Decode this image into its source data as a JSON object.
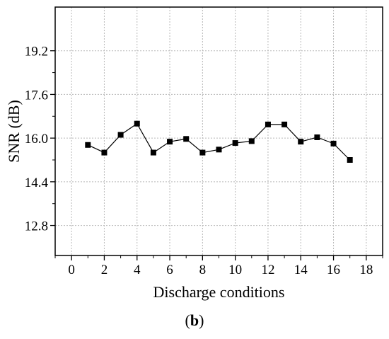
{
  "chart_data": {
    "type": "line",
    "xlabel": "Discharge conditions",
    "ylabel": "SNR (dB)",
    "xlim": [
      -1,
      19
    ],
    "ylim": [
      11.7,
      20.8
    ],
    "x_ticks": [
      0,
      2,
      4,
      6,
      8,
      10,
      12,
      14,
      16,
      18
    ],
    "y_ticks": [
      12.8,
      14.4,
      16.0,
      17.6,
      19.2
    ],
    "y_tick_labels": [
      "12.8",
      "14.4",
      "16.0",
      "17.6",
      "19.2"
    ],
    "grid": true,
    "marker": "square",
    "series": [
      {
        "x": [
          1,
          2,
          3,
          4,
          5,
          6,
          7,
          8,
          9,
          10,
          11,
          12,
          13,
          14,
          15,
          16,
          17
        ],
        "values": [
          15.75,
          15.47,
          16.12,
          16.53,
          15.47,
          15.87,
          15.97,
          15.47,
          15.58,
          15.82,
          15.89,
          16.5,
          16.5,
          15.87,
          16.03,
          15.8,
          15.2
        ]
      }
    ]
  },
  "panel_label": "b"
}
